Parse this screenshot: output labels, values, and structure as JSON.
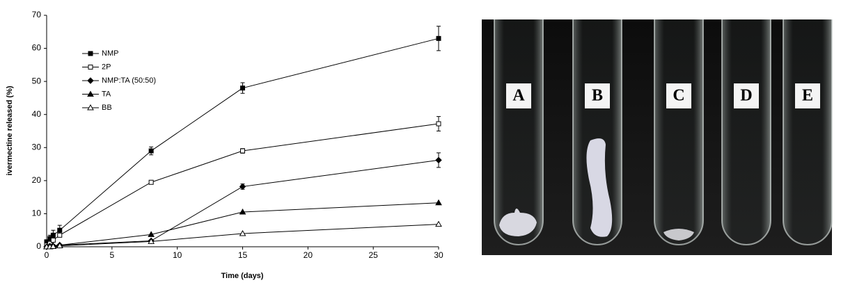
{
  "chart_data": {
    "type": "line",
    "x_label": "Time (days)",
    "y_label": "ivermectine released (%)",
    "x": [
      0,
      0.25,
      0.5,
      1,
      8,
      15,
      30
    ],
    "series": [
      {
        "name": "NMP",
        "color": "#000000",
        "marker": "square",
        "values": [
          1.5,
          2.5,
          3.5,
          5,
          29,
          48,
          63
        ],
        "errors": [
          0.5,
          1,
          1.5,
          1.5,
          1.2,
          1.6,
          3.7
        ]
      },
      {
        "name": "2P",
        "color": "#000000",
        "marker": "square-open",
        "values": [
          0.5,
          1,
          2,
          3.5,
          19.5,
          29,
          37.2
        ],
        "errors": [
          0.3,
          0.5,
          0.5,
          0.5,
          0.3,
          0.7,
          2.2
        ]
      },
      {
        "name": "NMP:TA (50:50)",
        "color": "#000000",
        "marker": "diamond",
        "values": [
          0,
          0.2,
          0.3,
          0.5,
          1.8,
          18.2,
          26.2
        ],
        "errors": [
          0,
          0,
          0,
          0,
          0,
          0.8,
          2.2
        ]
      },
      {
        "name": "TA",
        "color": "#000000",
        "marker": "triangle",
        "values": [
          0,
          0.2,
          0.3,
          0.5,
          3.7,
          10.5,
          13.3
        ]
      },
      {
        "name": "BB",
        "color": "#000000",
        "marker": "triangle-open",
        "values": [
          0,
          0,
          0.1,
          0.3,
          1.6,
          4,
          6.8
        ]
      }
    ],
    "xlim": [
      0,
      30
    ],
    "xticks": [
      0,
      5,
      10,
      15,
      20,
      25,
      30
    ],
    "ylim": [
      0,
      70
    ],
    "yticks": [
      0,
      10,
      20,
      30,
      40,
      50,
      60,
      70
    ],
    "grid": false,
    "legend": "upper left"
  },
  "photo": {
    "tube_labels": [
      "A",
      "B",
      "C",
      "D",
      "E"
    ]
  }
}
